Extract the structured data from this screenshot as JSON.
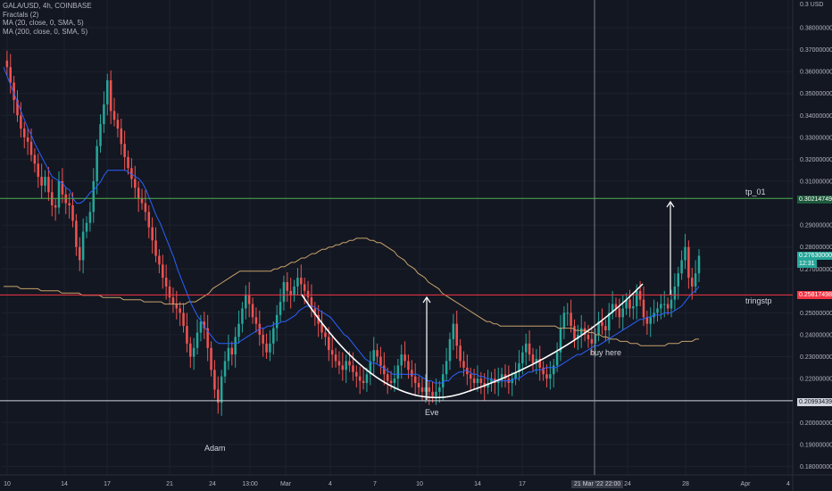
{
  "legend": {
    "symbol": "GALA/USD, 4h, COINBASE",
    "fractals": "Fractals (2)",
    "ma20": "MA (20, close, 0, SMA, 5)",
    "ma200": "MA (200, close, 0, SMA, 5)"
  },
  "currency_label": "0.3 USD",
  "annotations": {
    "adam": "Adam",
    "eve": "Eve",
    "buy_here": "buy here",
    "tp": "tp_01",
    "tringstp": "tringstp"
  },
  "price_badges": {
    "tp_price": "0.30214749",
    "last_price": "0.27630000",
    "countdown": "12:31",
    "stop_price": "0.25817498",
    "support_price": "0.20993439"
  },
  "crosshair_date": "21 Mar '22",
  "crosshair_time": "22:00",
  "colors": {
    "up": "#26a69a",
    "down": "#ef5350",
    "ma20": "#2962ff",
    "ma200": "#c8a26a",
    "tp_line": "#4caf50",
    "stop_line": "#f23645",
    "support_line": "#d1d4dc",
    "bg": "#131722"
  },
  "chart_data": {
    "type": "candlestick",
    "title": "GALA/USD, 4h, COINBASE",
    "ylim": [
      0.175,
      0.385
    ],
    "y_ticks": [
      "0.38000000",
      "0.37000000",
      "0.36000000",
      "0.35000000",
      "0.34000000",
      "0.33000000",
      "0.32000000",
      "0.31000000",
      "0.29000000",
      "0.28000000",
      "0.27000000",
      "0.25000000",
      "0.24000000",
      "0.23000000",
      "0.22000000",
      "0.20000000",
      "0.19000000",
      "0.18000000"
    ],
    "x_ticks": [
      "10",
      "14",
      "17",
      "21",
      "24",
      "13:00",
      "Mar",
      "4",
      "7",
      "10",
      "14",
      "17",
      "24",
      "28",
      "Apr",
      "4"
    ],
    "close": [
      0.365,
      0.362,
      0.355,
      0.347,
      0.34,
      0.334,
      0.33,
      0.328,
      0.322,
      0.318,
      0.312,
      0.308,
      0.312,
      0.305,
      0.299,
      0.298,
      0.31,
      0.304,
      0.3,
      0.299,
      0.292,
      0.28,
      0.274,
      0.287,
      0.291,
      0.296,
      0.31,
      0.326,
      0.336,
      0.345,
      0.356,
      0.342,
      0.338,
      0.334,
      0.327,
      0.321,
      0.316,
      0.311,
      0.307,
      0.302,
      0.3,
      0.296,
      0.289,
      0.283,
      0.276,
      0.272,
      0.266,
      0.262,
      0.257,
      0.254,
      0.252,
      0.25,
      0.244,
      0.236,
      0.23,
      0.234,
      0.241,
      0.246,
      0.243,
      0.234,
      0.224,
      0.215,
      0.209,
      0.221,
      0.228,
      0.234,
      0.231,
      0.239,
      0.245,
      0.252,
      0.258,
      0.254,
      0.248,
      0.245,
      0.24,
      0.236,
      0.232,
      0.236,
      0.243,
      0.249,
      0.255,
      0.264,
      0.26,
      0.258,
      0.262,
      0.266,
      0.263,
      0.26,
      0.257,
      0.252,
      0.249,
      0.245,
      0.241,
      0.239,
      0.233,
      0.231,
      0.228,
      0.226,
      0.224,
      0.228,
      0.226,
      0.223,
      0.221,
      0.219,
      0.218,
      0.222,
      0.228,
      0.233,
      0.23,
      0.226,
      0.222,
      0.219,
      0.218,
      0.22,
      0.226,
      0.231,
      0.228,
      0.224,
      0.221,
      0.218,
      0.216,
      0.214,
      0.216,
      0.214,
      0.212,
      0.214,
      0.216,
      0.222,
      0.228,
      0.238,
      0.245,
      0.235,
      0.228,
      0.225,
      0.222,
      0.22,
      0.218,
      0.22,
      0.218,
      0.216,
      0.218,
      0.22,
      0.218,
      0.219,
      0.222,
      0.22,
      0.218,
      0.22,
      0.223,
      0.227,
      0.232,
      0.236,
      0.231,
      0.227,
      0.229,
      0.225,
      0.222,
      0.22,
      0.222,
      0.226,
      0.232,
      0.243,
      0.25,
      0.25,
      0.244,
      0.238,
      0.24,
      0.243,
      0.24,
      0.238,
      0.236,
      0.24,
      0.246,
      0.244,
      0.242,
      0.25,
      0.254,
      0.252,
      0.248,
      0.252,
      0.256,
      0.252,
      0.253,
      0.26,
      0.256,
      0.248,
      0.245,
      0.248,
      0.25,
      0.252,
      0.254,
      0.254,
      0.252,
      0.256,
      0.262,
      0.268,
      0.274,
      0.28,
      0.266,
      0.262,
      0.268,
      0.276
    ],
    "ma20": [
      0.362,
      0.358,
      0.354,
      0.35,
      0.346,
      0.342,
      0.338,
      0.334,
      0.331,
      0.327,
      0.324,
      0.321,
      0.318,
      0.315,
      0.312,
      0.311,
      0.31,
      0.309,
      0.307,
      0.306,
      0.302,
      0.3,
      0.3,
      0.301,
      0.303,
      0.305,
      0.306,
      0.308,
      0.31,
      0.313,
      0.315,
      0.315,
      0.315,
      0.315,
      0.315,
      0.315,
      0.314,
      0.313,
      0.312,
      0.311,
      0.309,
      0.306,
      0.302,
      0.298,
      0.294,
      0.291,
      0.287,
      0.283,
      0.279,
      0.275,
      0.27,
      0.266,
      0.262,
      0.258,
      0.254,
      0.251,
      0.248,
      0.246,
      0.243,
      0.241,
      0.239,
      0.237,
      0.236,
      0.236,
      0.236,
      0.236,
      0.236,
      0.236,
      0.237,
      0.238,
      0.239,
      0.24,
      0.241,
      0.242,
      0.243,
      0.243,
      0.244,
      0.244,
      0.245,
      0.245,
      0.246,
      0.246,
      0.247,
      0.248,
      0.249,
      0.251,
      0.252,
      0.253,
      0.253,
      0.253,
      0.252,
      0.251,
      0.25,
      0.249,
      0.248,
      0.246,
      0.244,
      0.242,
      0.24,
      0.239,
      0.237,
      0.235,
      0.233,
      0.231,
      0.229,
      0.228,
      0.227,
      0.227,
      0.226,
      0.225,
      0.224,
      0.223,
      0.222,
      0.222,
      0.222,
      0.222,
      0.222,
      0.222,
      0.222,
      0.222,
      0.221,
      0.22,
      0.219,
      0.219,
      0.218,
      0.218,
      0.218,
      0.219,
      0.219,
      0.221,
      0.222,
      0.223,
      0.223,
      0.224,
      0.223,
      0.222,
      0.222,
      0.221,
      0.221,
      0.22,
      0.22,
      0.219,
      0.219,
      0.219,
      0.219,
      0.219,
      0.219,
      0.22,
      0.22,
      0.221,
      0.222,
      0.223,
      0.223,
      0.224,
      0.224,
      0.224,
      0.225,
      0.225,
      0.225,
      0.225,
      0.226,
      0.227,
      0.228,
      0.229,
      0.23,
      0.231,
      0.231,
      0.232,
      0.233,
      0.234,
      0.235,
      0.235,
      0.236,
      0.237,
      0.238,
      0.239,
      0.24,
      0.241,
      0.242,
      0.243,
      0.244,
      0.245,
      0.246,
      0.247,
      0.247,
      0.248,
      0.248,
      0.249,
      0.249,
      0.249,
      0.25,
      0.25,
      0.25,
      0.251,
      0.252,
      0.253,
      0.255,
      0.257,
      0.259,
      0.26,
      0.262
    ],
    "ma200": [
      0.262,
      0.262,
      0.262,
      0.262,
      0.262,
      0.261,
      0.261,
      0.261,
      0.261,
      0.261,
      0.261,
      0.26,
      0.26,
      0.26,
      0.26,
      0.26,
      0.26,
      0.259,
      0.259,
      0.259,
      0.259,
      0.259,
      0.259,
      0.258,
      0.258,
      0.258,
      0.258,
      0.258,
      0.258,
      0.257,
      0.257,
      0.257,
      0.257,
      0.257,
      0.257,
      0.256,
      0.256,
      0.256,
      0.256,
      0.256,
      0.256,
      0.255,
      0.255,
      0.255,
      0.255,
      0.255,
      0.255,
      0.254,
      0.254,
      0.254,
      0.254,
      0.254,
      0.254,
      0.254,
      0.255,
      0.255,
      0.255,
      0.256,
      0.257,
      0.258,
      0.259,
      0.261,
      0.262,
      0.263,
      0.264,
      0.265,
      0.266,
      0.267,
      0.268,
      0.269,
      0.269,
      0.269,
      0.269,
      0.269,
      0.269,
      0.269,
      0.269,
      0.269,
      0.269,
      0.27,
      0.27,
      0.271,
      0.271,
      0.272,
      0.273,
      0.273,
      0.274,
      0.275,
      0.275,
      0.276,
      0.277,
      0.277,
      0.278,
      0.279,
      0.279,
      0.28,
      0.28,
      0.281,
      0.281,
      0.282,
      0.282,
      0.283,
      0.283,
      0.284,
      0.284,
      0.284,
      0.284,
      0.283,
      0.283,
      0.282,
      0.282,
      0.281,
      0.28,
      0.279,
      0.278,
      0.276,
      0.275,
      0.274,
      0.272,
      0.271,
      0.27,
      0.268,
      0.267,
      0.266,
      0.264,
      0.263,
      0.262,
      0.261,
      0.259,
      0.258,
      0.257,
      0.256,
      0.255,
      0.254,
      0.253,
      0.252,
      0.251,
      0.25,
      0.249,
      0.248,
      0.247,
      0.246,
      0.246,
      0.245,
      0.245,
      0.244,
      0.244,
      0.244,
      0.244,
      0.244,
      0.244,
      0.244,
      0.244,
      0.244,
      0.244,
      0.244,
      0.244,
      0.244,
      0.244,
      0.244,
      0.244,
      0.244,
      0.243,
      0.243,
      0.243,
      0.243,
      0.243,
      0.242,
      0.242,
      0.242,
      0.242,
      0.241,
      0.241,
      0.24,
      0.24,
      0.239,
      0.239,
      0.238,
      0.238,
      0.238,
      0.237,
      0.237,
      0.237,
      0.236,
      0.236,
      0.236,
      0.235,
      0.235,
      0.235,
      0.235,
      0.235,
      0.235,
      0.235,
      0.235,
      0.236,
      0.236,
      0.236,
      0.236,
      0.237,
      0.237,
      0.237,
      0.237,
      0.238,
      0.238
    ],
    "horizontal_lines": [
      {
        "label": "tp_01",
        "price": 0.30214749
      },
      {
        "label": "tringstp",
        "price": 0.25817498
      },
      {
        "price": 0.20993439
      }
    ],
    "grid": true
  }
}
